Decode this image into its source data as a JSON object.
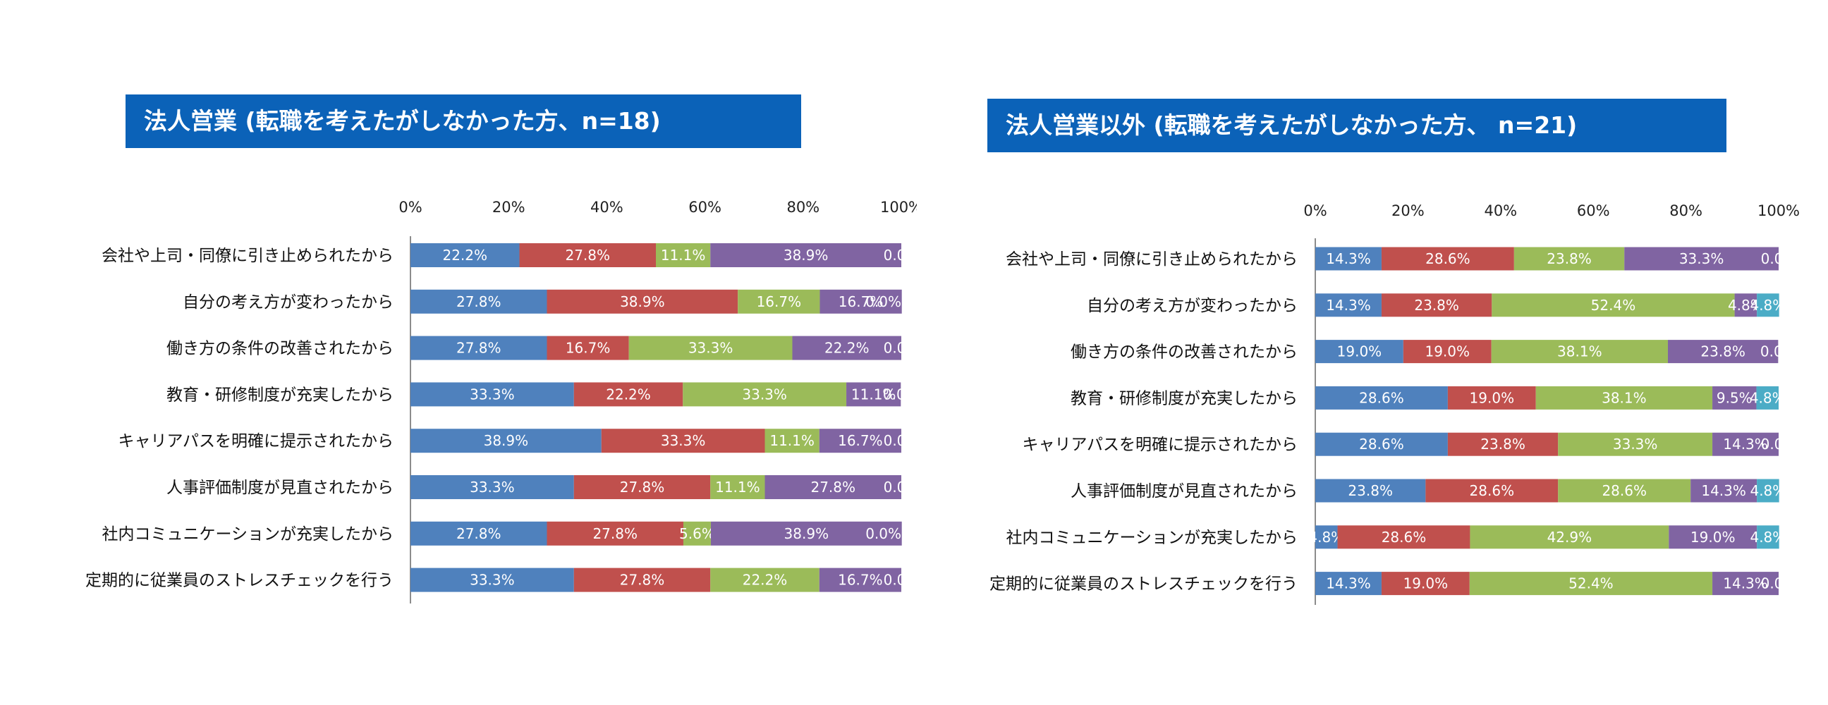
{
  "colors": {
    "title_bg": "#0b62b8",
    "series": [
      "#4f81bd",
      "#c0504d",
      "#9bbb59",
      "#8064a2",
      "#4bacc6"
    ]
  },
  "chart_data": [
    {
      "type": "bar",
      "orientation": "horizontal",
      "stacked": "percent",
      "title": "法人営業 (転職を考えたがしなかった方、n=18)",
      "x_ticks": [
        "0%",
        "20%",
        "40%",
        "60%",
        "80%",
        "100%"
      ],
      "xlim": [
        0,
        100
      ],
      "categories": [
        "会社や上司・同僚に引き止められたから",
        "自分の考え方が変わったから",
        "働き方の条件の改善されたから",
        "教育・研修制度が充実したから",
        "キャリアパスを明確に提示されたから",
        "人事評価制度が見直されたから",
        "社内コミュニケーションが充実したから",
        "定期的に従業員のストレスチェックを行う"
      ],
      "series": [
        {
          "values": [
            22.2,
            27.8,
            27.8,
            33.3,
            38.9,
            33.3,
            27.8,
            33.3
          ]
        },
        {
          "values": [
            27.8,
            38.9,
            16.7,
            22.2,
            33.3,
            27.8,
            27.8,
            27.8
          ]
        },
        {
          "values": [
            11.1,
            16.7,
            33.3,
            33.3,
            11.1,
            11.1,
            5.6,
            22.2
          ]
        },
        {
          "values": [
            38.9,
            16.7,
            22.2,
            11.1,
            16.7,
            27.8,
            38.9,
            16.7
          ]
        },
        {
          "values": [
            0.0,
            0.0,
            0.0,
            0.0,
            0.0,
            0.0,
            0.0,
            0.0
          ]
        }
      ]
    },
    {
      "type": "bar",
      "orientation": "horizontal",
      "stacked": "percent",
      "title": "法人営業以外 (転職を考えたがしなかった方、 n=21)",
      "x_ticks": [
        "0%",
        "20%",
        "40%",
        "60%",
        "80%",
        "100%"
      ],
      "xlim": [
        0,
        100
      ],
      "categories": [
        "会社や上司・同僚に引き止められたから",
        "自分の考え方が変わったから",
        "働き方の条件の改善されたから",
        "教育・研修制度が充実したから",
        "キャリアパスを明確に提示されたから",
        "人事評価制度が見直されたから",
        "社内コミュニケーションが充実したから",
        "定期的に従業員のストレスチェックを行う"
      ],
      "series": [
        {
          "values": [
            14.3,
            14.3,
            19.0,
            28.6,
            28.6,
            23.8,
            4.8,
            14.3
          ]
        },
        {
          "values": [
            28.6,
            23.8,
            19.0,
            19.0,
            23.8,
            28.6,
            28.6,
            19.0
          ]
        },
        {
          "values": [
            23.8,
            52.4,
            38.1,
            38.1,
            33.3,
            28.6,
            42.9,
            52.4
          ]
        },
        {
          "values": [
            33.3,
            4.8,
            23.8,
            9.5,
            14.3,
            14.3,
            19.0,
            14.3
          ]
        },
        {
          "values": [
            0.0,
            4.8,
            0.0,
            4.8,
            0.0,
            4.8,
            4.8,
            0.0
          ]
        }
      ]
    }
  ]
}
